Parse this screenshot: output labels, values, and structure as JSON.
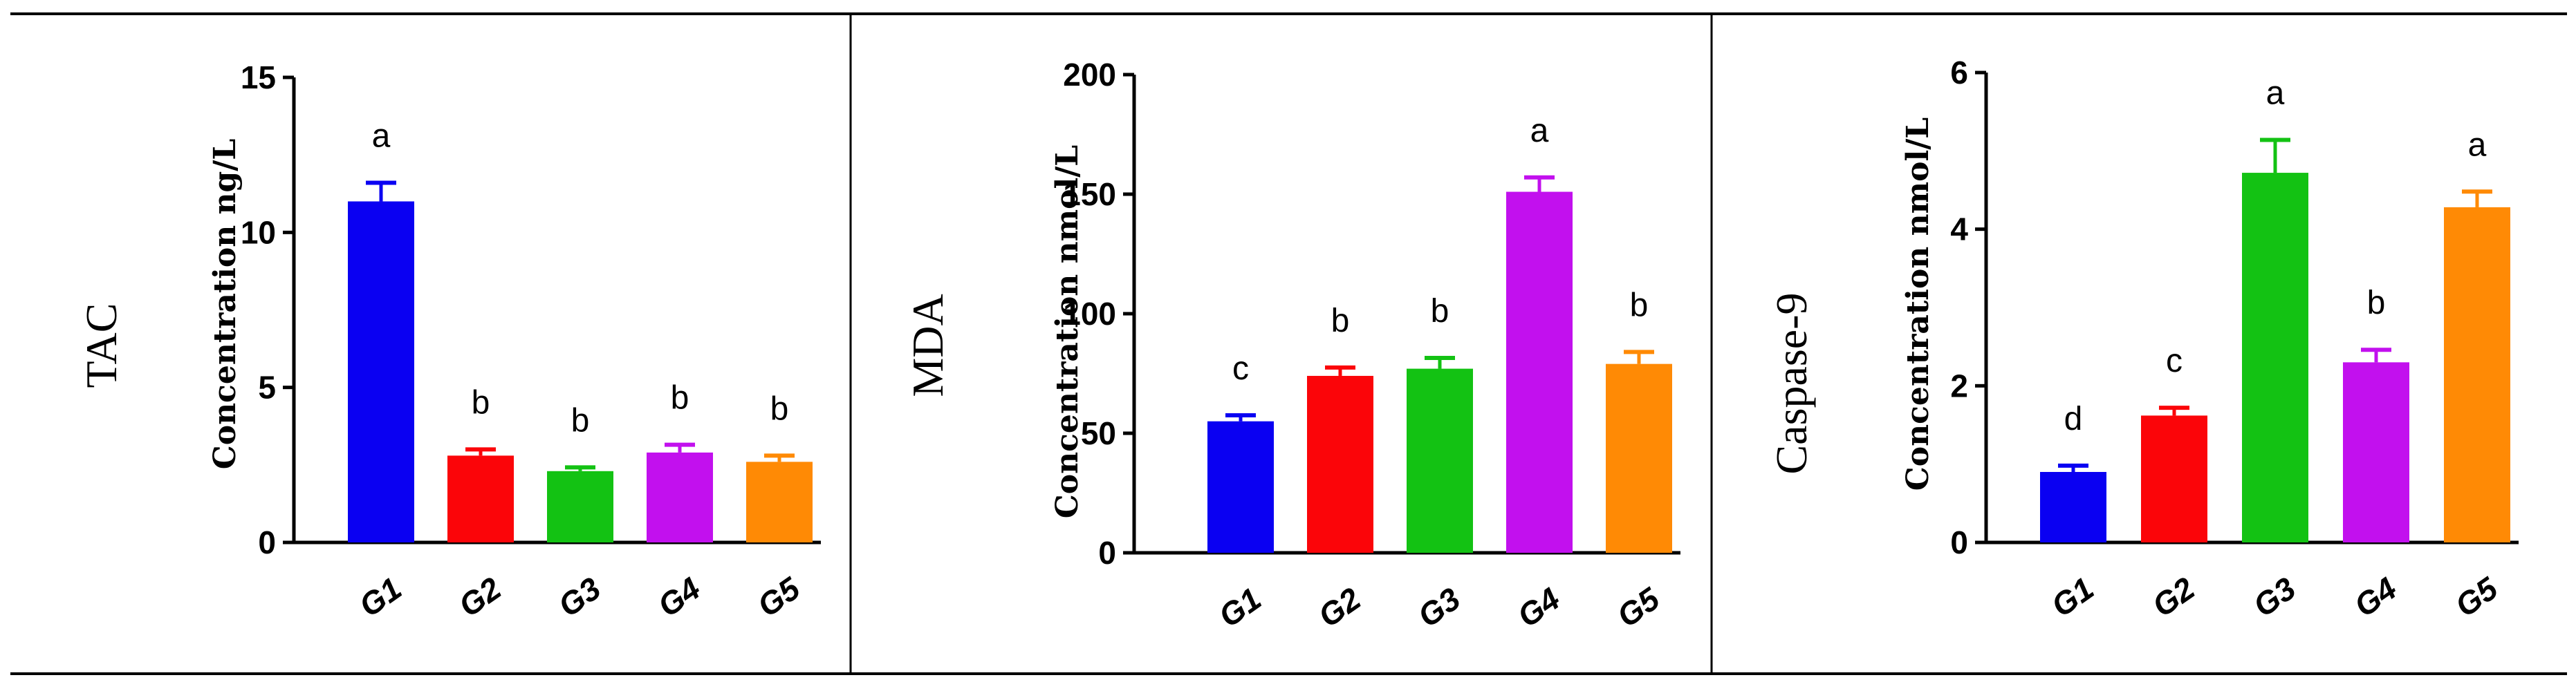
{
  "chart_data": [
    {
      "type": "bar",
      "panel_label": "TAC",
      "ylabel": "Concentration ng/L",
      "ylim": [
        0,
        15
      ],
      "yticks": [
        0,
        5,
        10,
        15
      ],
      "categories": [
        "G1",
        "G2",
        "G3",
        "G4",
        "G5"
      ],
      "values": [
        11.0,
        2.8,
        2.3,
        2.9,
        2.6
      ],
      "errors": [
        0.6,
        0.2,
        0.12,
        0.25,
        0.2
      ],
      "significance": [
        "a",
        "b",
        "b",
        "b",
        "b"
      ],
      "colors": [
        "#0a00f2",
        "#fb0509",
        "#13c213",
        "#c210ee",
        "#ff8a05"
      ],
      "grid": false,
      "legend": "none"
    },
    {
      "type": "bar",
      "panel_label": "MDA",
      "ylabel": "Concentration nmol/L",
      "ylim": [
        0,
        200
      ],
      "yticks": [
        0,
        50,
        100,
        150,
        200
      ],
      "categories": [
        "G1",
        "G2",
        "G3",
        "G4",
        "G5"
      ],
      "values": [
        55,
        74,
        77,
        151,
        79
      ],
      "errors": [
        2.5,
        3.5,
        4.5,
        6,
        5
      ],
      "significance": [
        "c",
        "b",
        "b",
        "a",
        "b"
      ],
      "colors": [
        "#0a00f2",
        "#fb0509",
        "#13c213",
        "#c210ee",
        "#ff8a05"
      ],
      "grid": false,
      "legend": "none"
    },
    {
      "type": "bar",
      "panel_label": "Caspase-9",
      "ylabel": "Concentration nmol/L",
      "ylim": [
        0,
        6
      ],
      "yticks": [
        0,
        2,
        4,
        6
      ],
      "categories": [
        "G1",
        "G2",
        "G3",
        "G4",
        "G5"
      ],
      "values": [
        0.9,
        1.62,
        4.72,
        2.3,
        4.28
      ],
      "errors": [
        0.08,
        0.1,
        0.42,
        0.16,
        0.2
      ],
      "significance": [
        "d",
        "c",
        "a",
        "b",
        "a"
      ],
      "colors": [
        "#0a00f2",
        "#fb0509",
        "#13c213",
        "#c210ee",
        "#ff8a05"
      ],
      "grid": false,
      "legend": "none"
    }
  ]
}
